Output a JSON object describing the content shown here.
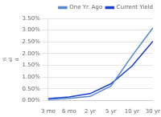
{
  "chart_data": {
    "type": "line",
    "categories": [
      "3 mo",
      "6 mo",
      "2 yr",
      "5 yr",
      "10 yr",
      "30 yr"
    ],
    "series": [
      {
        "name": "One Yr. Ago",
        "color": "#5588cc",
        "values": [
          0.05,
          0.1,
          0.18,
          0.62,
          1.9,
          3.1
        ]
      },
      {
        "name": "Current Yield",
        "color": "#1a3fcc",
        "values": [
          0.09,
          0.16,
          0.3,
          0.72,
          1.47,
          2.53
        ]
      }
    ],
    "y_label": "Yi\nel\nd",
    "ylim": [
      0.0,
      3.5
    ],
    "yticks": [
      {
        "value": 0.0,
        "label": "0.00%"
      },
      {
        "value": 0.5,
        "label": "0.50%"
      },
      {
        "value": 1.0,
        "label": "1.00%"
      },
      {
        "value": 1.5,
        "label": "1.50%"
      },
      {
        "value": 2.0,
        "label": "2.00%"
      },
      {
        "value": 2.5,
        "label": "2.50%"
      },
      {
        "value": 3.0,
        "label": "3.00%"
      },
      {
        "value": 3.5,
        "label": "3.50%"
      }
    ],
    "grid": "y",
    "legend": "upper right"
  }
}
